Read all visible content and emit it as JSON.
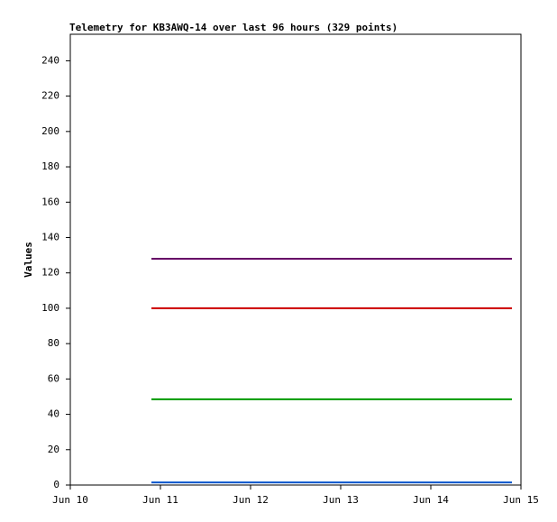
{
  "chart_data": {
    "type": "line",
    "title": "Telemetry for KB3AWQ-14 over last 96 hours (329 points)",
    "y_label": "Values",
    "x": [
      10.9,
      14.9
    ],
    "xlim": [
      10,
      15
    ],
    "xticks": [
      {
        "value": 10,
        "label": "Jun 10"
      },
      {
        "value": 11,
        "label": "Jun 11"
      },
      {
        "value": 12,
        "label": "Jun 12"
      },
      {
        "value": 13,
        "label": "Jun 13"
      },
      {
        "value": 14,
        "label": "Jun 14"
      },
      {
        "value": 15,
        "label": "Jun 15"
      }
    ],
    "ylim": [
      0,
      255
    ],
    "yticks": [
      0,
      20,
      40,
      60,
      80,
      100,
      120,
      140,
      160,
      180,
      200,
      220,
      240
    ],
    "series": [
      {
        "color": "#660066",
        "values": [
          128,
          128
        ]
      },
      {
        "color": "#cc0000",
        "values": [
          100,
          100
        ]
      },
      {
        "color": "#009900",
        "values": [
          48.5,
          48.5
        ]
      },
      {
        "color": "#0055cc",
        "values": [
          1.5,
          1.5
        ]
      }
    ]
  }
}
